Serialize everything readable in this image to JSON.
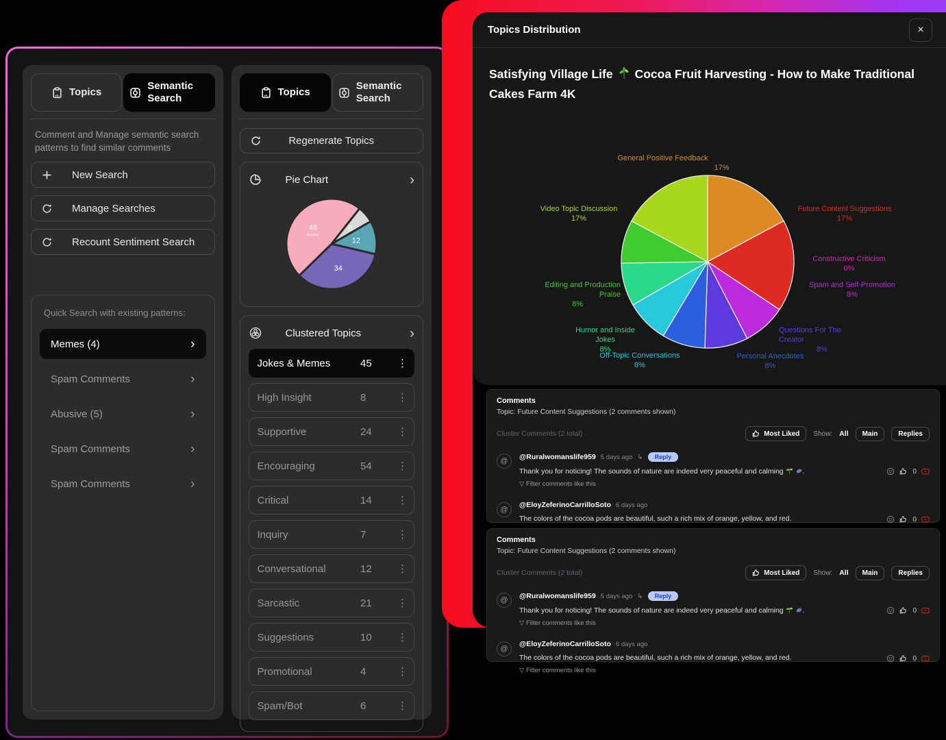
{
  "left": {
    "search_panel": {
      "tabs": [
        {
          "label": "Topics"
        },
        {
          "label": "Semantic Search"
        }
      ],
      "description": "Comment and Manage semantic search patterns to find similar comments",
      "actions": [
        {
          "label": "New Search",
          "icon": "plus-icon"
        },
        {
          "label": "Manage Searches",
          "icon": "refresh-icon"
        },
        {
          "label": "Recount Sentiment Search",
          "icon": "refresh-icon"
        }
      ],
      "quick_search": {
        "heading": "Quick Search with existing patterns:",
        "items": [
          {
            "label": "Memes (4)",
            "active": true
          },
          {
            "label": "Spam Comments",
            "active": false
          },
          {
            "label": "Abusive (5)",
            "active": false
          },
          {
            "label": "Spam Comments",
            "active": false
          },
          {
            "label": "Spam Comments",
            "active": false
          }
        ]
      }
    },
    "topics_panel": {
      "tabs": [
        {
          "label": "Topics"
        },
        {
          "label": "Semantic Search"
        }
      ],
      "regenerate_label": "Regenerate Topics",
      "pie_card_title": "Pie Chart",
      "clustered_title": "Clustered Topics",
      "rows": [
        {
          "label": "Jokes & Memes",
          "count": "45",
          "active": true
        },
        {
          "label": "High Insight",
          "count": "8",
          "active": false
        },
        {
          "label": "Supportive",
          "count": "24",
          "active": false
        },
        {
          "label": "Encouraging",
          "count": "54",
          "active": false
        },
        {
          "label": "Critical",
          "count": "14",
          "active": false
        },
        {
          "label": "Inquiry",
          "count": "7",
          "active": false
        },
        {
          "label": "Conversational",
          "count": "12",
          "active": false
        },
        {
          "label": "Sarcastic",
          "count": "21",
          "active": false
        },
        {
          "label": "Suggestions",
          "count": "10",
          "active": false
        },
        {
          "label": "Promotional",
          "count": "4",
          "active": false
        },
        {
          "label": "Spam/Bot",
          "count": "6",
          "active": false
        }
      ]
    }
  },
  "modal": {
    "header_title": "Topics Distribution",
    "close_label": "×",
    "video_title_1": "Satisfying Village Life",
    "video_title_2": "Cocoa Fruit Harvesting - How to Make Traditional Cakes Farm 4K",
    "sections": [
      {
        "heading": "Comments",
        "topic_line": "Topic: Future Content Suggestions (2 comments shown)",
        "cluster_line": "Cluster Comments (2 total)",
        "most_liked_label": "Most Liked",
        "show_label": "Show:",
        "filters": [
          "All",
          "Main",
          "Replies"
        ],
        "comments": [
          {
            "avatar": "@",
            "username": "@Ruralwomanslife959",
            "time": "5 days ago",
            "reply_label": "Reply",
            "text": "Thank you for noticing! The sounds of nature are indeed very peaceful and calming",
            "text_end": ".",
            "likes": "0",
            "filter_label": "▽ Filter comments like this"
          },
          {
            "avatar": "@",
            "username": "@EloyZeferinoCarrilloSoto",
            "time": "6 days ago",
            "text": "The colors of the cocoa pods are beautiful, such a rich mix of orange, yellow, and red.",
            "likes": "0",
            "filter_label": "▽ Filter comments like this"
          }
        ]
      },
      {
        "heading": "Comments",
        "topic_line": "Topic: Future Content Suggestions (2 comments shown)",
        "cluster_line": "Cluster Comments (2 total)",
        "most_liked_label": "Most Liked",
        "show_label": "Show:",
        "filters": [
          "All",
          "Main",
          "Replies"
        ],
        "comments": [
          {
            "avatar": "@",
            "username": "@Ruralwomanslife959",
            "time": "5 days ago",
            "reply_label": "Reply",
            "text": "Thank you for noticing! The sounds of nature are indeed very peaceful and calming",
            "text_end": ".",
            "likes": "0",
            "filter_label": "▽ Filter comments like this"
          },
          {
            "avatar": "@",
            "username": "@EloyZeferinoCarrilloSoto",
            "time": "6 days ago",
            "text": "The colors of the cocoa pods are beautiful, such a rich mix of orange, yellow, and red.",
            "likes": "0",
            "filter_label": "▽ Filter comments like this"
          }
        ]
      }
    ]
  },
  "chart_data": [
    {
      "type": "pie",
      "name": "sentiment-mini-pie",
      "start_angle_deg": -30,
      "stroke": "#2b2b2b",
      "slices": [
        {
          "label": "",
          "value": 12,
          "display": "12",
          "color": "#5ba4b4"
        },
        {
          "label": "",
          "value": 34,
          "display": "34",
          "color": "#7866bb"
        },
        {
          "label": "Positive",
          "value": 48,
          "display": "48",
          "color": "#f8abba"
        },
        {
          "label": "",
          "value": 6,
          "display": "6",
          "color": "#d9d9d9"
        }
      ]
    },
    {
      "type": "pie",
      "name": "topics-distribution-pie",
      "title": "Topics Distribution",
      "start_angle_deg": -90,
      "stroke": "#e8e8e8",
      "slices": [
        {
          "label": "General Positive Feedback",
          "pct": "17%",
          "value": 17,
          "color": "#dd8a22"
        },
        {
          "label": "Future Content Suggestions",
          "pct": "17%",
          "value": 17,
          "color": "#dd2a22"
        },
        {
          "label": "Constructive Criticism",
          "pct": "0%",
          "value": 0,
          "color": "#cc2ab8"
        },
        {
          "label": "Spam and Self-Promotion",
          "pct": "8%",
          "value": 8,
          "color": "#bb2add"
        },
        {
          "label": "Questions For The Creator",
          "pct": "8%",
          "value": 8,
          "color": "#5d3add"
        },
        {
          "label": "Personal Anecdotes",
          "pct": "8%",
          "value": 8,
          "color": "#2b5fdd"
        },
        {
          "label": "Off-Topic Conversations",
          "pct": "8%",
          "value": 8,
          "color": "#28c8dd"
        },
        {
          "label": "Humor and Inside Jokes",
          "pct": "8%",
          "value": 8,
          "color": "#2ad98c"
        },
        {
          "label": "Editing and Production Praise",
          "pct": "8%",
          "value": 8,
          "color": "#3ecc2e"
        },
        {
          "label": "Video Topic Discussion",
          "pct": "17%",
          "value": 17,
          "color": "#a8d81c"
        }
      ]
    }
  ]
}
